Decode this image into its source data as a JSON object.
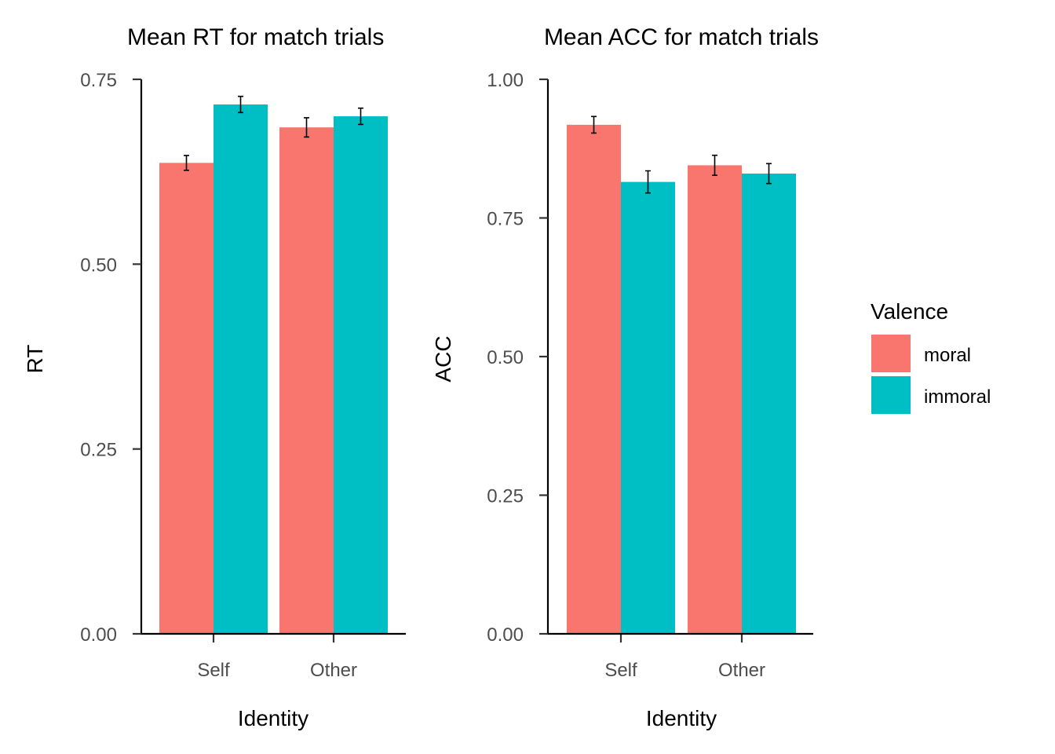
{
  "chart_data": [
    {
      "type": "bar",
      "title": "Mean RT for match trials",
      "xlabel": "Identity",
      "ylabel": "RT",
      "categories": [
        "Self",
        "Other"
      ],
      "ylim": [
        0,
        0.75
      ],
      "yticks": [
        0.0,
        0.25,
        0.5,
        0.75
      ],
      "ytick_labels": [
        "0.00",
        "0.25",
        "0.50",
        "0.75"
      ],
      "series": [
        {
          "name": "moral",
          "values": [
            0.637,
            0.685
          ],
          "errors": [
            0.01,
            0.013
          ]
        },
        {
          "name": "immoral",
          "values": [
            0.716,
            0.7
          ],
          "errors": [
            0.011,
            0.011
          ]
        }
      ]
    },
    {
      "type": "bar",
      "title": "Mean ACC for match trials",
      "xlabel": "Identity",
      "ylabel": "ACC",
      "categories": [
        "Self",
        "Other"
      ],
      "ylim": [
        0,
        1.0
      ],
      "yticks": [
        0.0,
        0.25,
        0.5,
        0.75,
        1.0
      ],
      "ytick_labels": [
        "0.00",
        "0.25",
        "0.50",
        "0.75",
        "1.00"
      ],
      "series": [
        {
          "name": "moral",
          "values": [
            0.918,
            0.845
          ],
          "errors": [
            0.015,
            0.018
          ]
        },
        {
          "name": "immoral",
          "values": [
            0.815,
            0.83
          ],
          "errors": [
            0.02,
            0.018
          ]
        }
      ]
    }
  ],
  "legend": {
    "title": "Valence",
    "placement": "right",
    "items": [
      {
        "label": "moral",
        "color": "#F8766D"
      },
      {
        "label": "immoral",
        "color": "#00BFC4"
      }
    ]
  }
}
